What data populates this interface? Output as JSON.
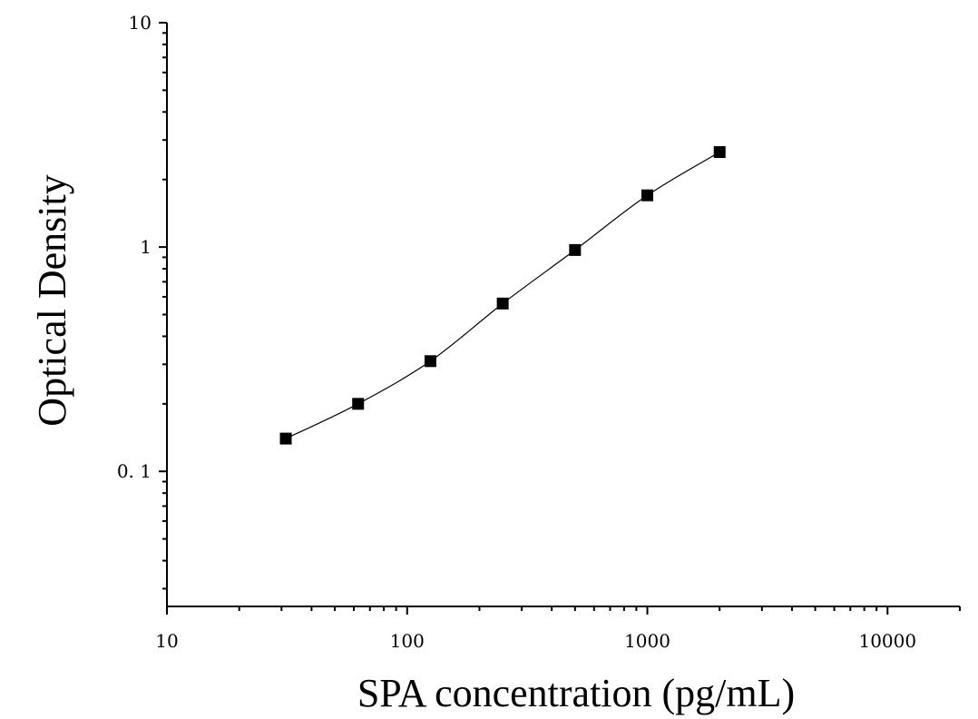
{
  "chart_data": {
    "type": "scatter",
    "title": "",
    "xlabel": "SPA concentration (pg/mL)",
    "ylabel": "Optical Density",
    "x_scale": "log",
    "y_scale": "log",
    "xlim": [
      10,
      20000
    ],
    "ylim": [
      0.025,
      10
    ],
    "x_ticks": [
      {
        "value": 10,
        "label": "10"
      },
      {
        "value": 100,
        "label": "100"
      },
      {
        "value": 1000,
        "label": "1000"
      },
      {
        "value": 10000,
        "label": "10000"
      }
    ],
    "y_ticks": [
      {
        "value": 0.1,
        "label": "0. 1"
      },
      {
        "value": 1,
        "label": "1"
      },
      {
        "value": 10,
        "label": "10"
      }
    ],
    "grid": false,
    "legend": "none",
    "series": [
      {
        "x": [
          31.25,
          62.5,
          125,
          250,
          500,
          1000,
          2000
        ],
        "y": [
          0.14,
          0.2,
          0.31,
          0.56,
          0.97,
          1.7,
          2.65
        ],
        "marker": "square",
        "fit_line": true,
        "color": "#000000"
      }
    ]
  }
}
